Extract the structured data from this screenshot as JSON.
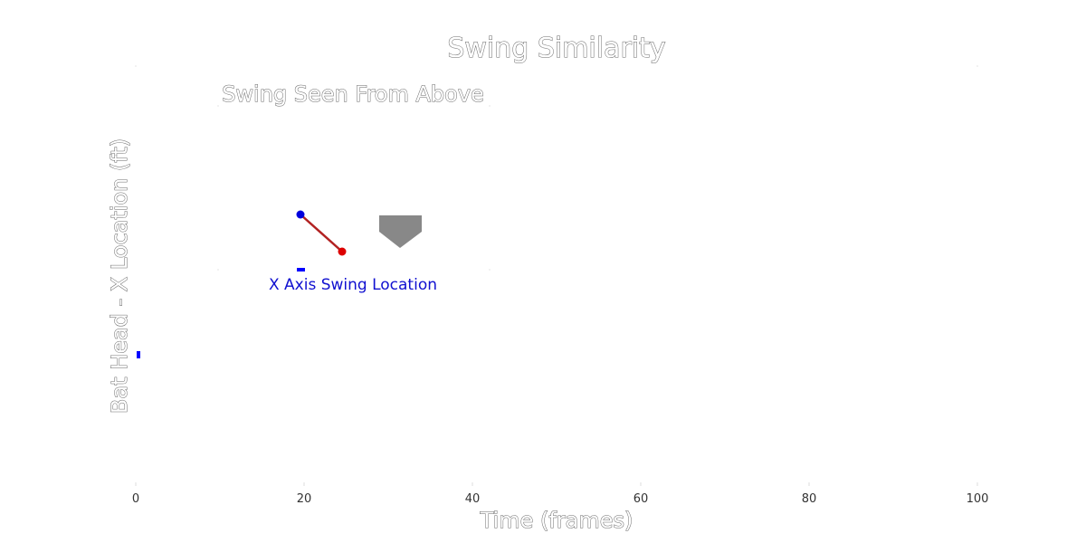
{
  "chart_data": [
    {
      "type": "line",
      "title": "Swing Similarity",
      "xlabel": "Time (frames)",
      "ylabel": "Bat Head - X Location (ft)",
      "xlim": [
        0,
        100
      ],
      "x_ticks": [
        "0",
        "20",
        "40",
        "60",
        "80",
        "100"
      ],
      "grid": false,
      "series": [
        {
          "values": [
            {
              "x": 0,
              "y": 0
            }
          ],
          "color": "#0000ff"
        }
      ]
    },
    {
      "type": "scatter",
      "title": "Swing Seen From Above",
      "annotation": "X Axis Swing Location",
      "bat": {
        "handle": {
          "x": -1.0,
          "y": 1.0
        },
        "head": {
          "x": 0.0,
          "y": 0.0
        },
        "line_color": "#b22222",
        "handle_color": "#0000dd",
        "head_color": "#dd0000"
      },
      "home_plate": {
        "color": "#888888"
      },
      "marker_color": "#0000ff"
    }
  ]
}
